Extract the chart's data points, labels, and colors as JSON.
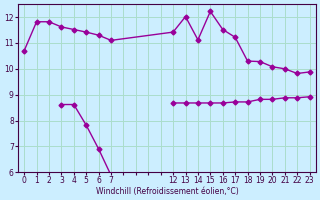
{
  "bg_color": "#cceeff",
  "grid_color": "#aaddcc",
  "line_color": "#990099",
  "xlabel": "Windchill (Refroidissement éolien,°C)",
  "upper_x": [
    0,
    1,
    2,
    3,
    4,
    5,
    6,
    7,
    12,
    13,
    14,
    15,
    16,
    17,
    18,
    19,
    20,
    21,
    22,
    23
  ],
  "upper_y": [
    10.7,
    11.82,
    11.82,
    11.62,
    11.52,
    11.42,
    11.3,
    11.1,
    11.42,
    12.02,
    11.12,
    12.22,
    11.52,
    11.22,
    10.3,
    10.28,
    10.08,
    10.0,
    9.82,
    9.88
  ],
  "lower_x1": [
    3,
    4,
    5,
    6,
    7
  ],
  "lower_y1": [
    8.62,
    8.62,
    7.82,
    6.9,
    5.88
  ],
  "lower_x2": [
    12,
    13,
    14,
    15,
    16,
    17,
    18,
    19,
    20,
    21,
    22,
    23
  ],
  "lower_y2": [
    8.68,
    8.68,
    8.68,
    8.68,
    8.68,
    8.72,
    8.72,
    8.82,
    8.82,
    8.88,
    8.88,
    8.92
  ],
  "ylim": [
    6,
    12.5
  ],
  "xtick_positions": [
    0,
    1,
    2,
    3,
    4,
    5,
    6,
    7,
    8,
    9,
    10,
    11,
    12,
    13,
    14,
    15,
    16,
    17,
    18,
    19,
    20,
    21,
    22,
    23
  ],
  "xtick_labels": [
    "0",
    "1",
    "2",
    "3",
    "4",
    "5",
    "6",
    "7",
    "",
    "",
    "",
    "",
    "12",
    "13",
    "14",
    "15",
    "16",
    "17",
    "18",
    "19",
    "20",
    "21",
    "22",
    "23"
  ],
  "yticks": [
    6,
    7,
    8,
    9,
    10,
    11,
    12
  ],
  "marker": "D",
  "markersize": 2.5,
  "linewidth": 1.0
}
